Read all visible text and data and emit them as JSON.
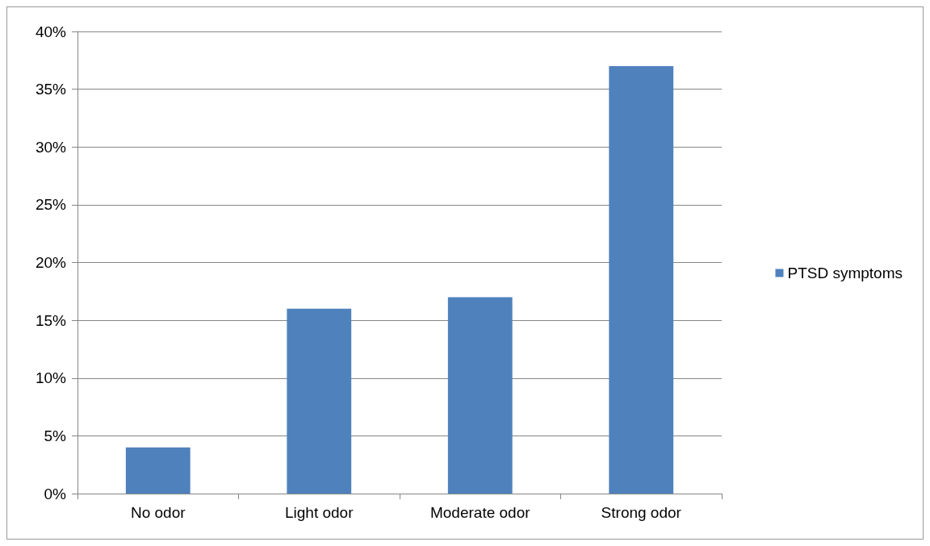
{
  "chart_data": {
    "type": "bar",
    "categories": [
      "No odor",
      "Light odor",
      "Moderate odor",
      "Strong odor"
    ],
    "series": [
      {
        "name": "PTSD symptoms",
        "color": "#4f81bd",
        "values": [
          4,
          16,
          17,
          37
        ]
      }
    ],
    "ylim": [
      0,
      40
    ],
    "yticks": [
      {
        "value": 0,
        "label": "0%"
      },
      {
        "value": 5,
        "label": "5%"
      },
      {
        "value": 10,
        "label": "10%"
      },
      {
        "value": 15,
        "label": "15%"
      },
      {
        "value": 20,
        "label": "20%"
      },
      {
        "value": 25,
        "label": "25%"
      },
      {
        "value": 30,
        "label": "30%"
      },
      {
        "value": 35,
        "label": "35%"
      },
      {
        "value": 40,
        "label": "40%"
      }
    ],
    "grid": "y",
    "legend": "right"
  }
}
